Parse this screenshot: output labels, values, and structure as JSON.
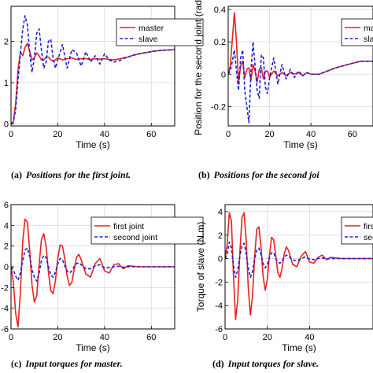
{
  "colors": {
    "master": "#e8201f",
    "slave": "#1f1fd6",
    "grid": "#d9d9d9",
    "frame": "#000000"
  },
  "chart_data": [
    {
      "type": "line",
      "caption_tag": "(a)",
      "caption": "Positions for the first joint.",
      "xlabel": "Time (s)",
      "ylabel": "",
      "xlim": [
        0,
        70
      ],
      "ylim": [
        -0.05,
        2.85
      ],
      "xticks": [
        0,
        20,
        40,
        60
      ],
      "yticks": [
        0,
        1,
        2
      ],
      "grid": true,
      "legend_position": "top-right",
      "series": [
        {
          "name": "master",
          "style": "solid",
          "color": "#e8201f",
          "x": [
            0,
            1,
            2,
            3,
            4,
            5,
            6,
            7,
            8,
            9,
            10,
            11,
            12,
            13,
            14,
            15,
            16,
            17,
            18,
            19,
            20,
            22,
            24,
            26,
            28,
            30,
            32,
            34,
            36,
            38,
            40,
            42,
            44,
            46,
            48,
            50,
            52,
            55,
            58,
            61,
            64,
            67,
            70
          ],
          "y": [
            0,
            0.05,
            0.5,
            1.3,
            1.75,
            1.65,
            1.85,
            1.95,
            1.75,
            1.55,
            1.6,
            1.72,
            1.65,
            1.55,
            1.55,
            1.62,
            1.62,
            1.55,
            1.52,
            1.55,
            1.6,
            1.55,
            1.58,
            1.6,
            1.56,
            1.58,
            1.58,
            1.56,
            1.58,
            1.57,
            1.58,
            1.56,
            1.55,
            1.57,
            1.6,
            1.62,
            1.66,
            1.7,
            1.73,
            1.76,
            1.78,
            1.79,
            1.8
          ]
        },
        {
          "name": "slave",
          "style": "dashed",
          "color": "#1f1fd6",
          "x": [
            0,
            1,
            2,
            3,
            4,
            5,
            6,
            7,
            8,
            9,
            10,
            11,
            12,
            13,
            14,
            15,
            16,
            17,
            18,
            19,
            20,
            22,
            24,
            26,
            28,
            30,
            32,
            34,
            36,
            38,
            40,
            42,
            44,
            46,
            48,
            50,
            52,
            55,
            58,
            61,
            64,
            67,
            70
          ],
          "y": [
            0,
            0.05,
            0.35,
            1.05,
            1.7,
            2.3,
            2.62,
            2.4,
            1.7,
            1.25,
            1.6,
            2.2,
            2.3,
            1.8,
            1.35,
            1.5,
            2.0,
            2.05,
            1.6,
            1.35,
            1.55,
            1.92,
            1.35,
            1.8,
            1.72,
            1.4,
            1.75,
            1.5,
            1.65,
            1.45,
            1.7,
            1.55,
            1.5,
            1.52,
            1.58,
            1.62,
            1.66,
            1.7,
            1.73,
            1.76,
            1.78,
            1.79,
            1.8
          ]
        }
      ]
    },
    {
      "type": "line",
      "caption_tag": "(b)",
      "caption": "Positions for the second joi",
      "xlabel": "Time (s)",
      "ylabel": "Position for the second joint (rad)",
      "xlim": [
        0,
        70
      ],
      "ylim": [
        -0.32,
        0.42
      ],
      "xticks": [
        0,
        20,
        40
      ],
      "xtick_partial": "60",
      "yticks": [
        -0.2,
        0,
        0.2,
        0.4
      ],
      "grid": true,
      "legend_position": "top-right",
      "series": [
        {
          "name": "master",
          "style": "solid",
          "color": "#e8201f",
          "x": [
            0,
            1,
            2,
            3,
            4,
            5,
            6,
            7,
            8,
            9,
            10,
            11,
            12,
            13,
            14,
            15,
            16,
            17,
            18,
            19,
            20,
            22,
            24,
            26,
            28,
            30,
            32,
            34,
            36,
            38,
            40,
            42,
            44,
            46,
            48,
            50,
            52,
            55,
            58,
            61,
            64,
            67,
            70
          ],
          "y": [
            0,
            0.05,
            0.22,
            0.38,
            0.2,
            -0.05,
            0.05,
            0.08,
            -0.02,
            0.03,
            0.04,
            -0.04,
            0.06,
            0.02,
            -0.05,
            0.03,
            0.04,
            -0.03,
            0.02,
            0.02,
            -0.02,
            0.02,
            -0.01,
            0.01,
            -0.01,
            0.01,
            0,
            0.01,
            -0.01,
            0.01,
            0,
            0,
            0,
            0.01,
            0.02,
            0.03,
            0.04,
            0.05,
            0.06,
            0.07,
            0.08,
            0.08,
            0.08
          ]
        },
        {
          "name": "slave",
          "style": "dashed",
          "color": "#1f1fd6",
          "x": [
            0,
            1,
            2,
            3,
            4,
            5,
            6,
            7,
            8,
            9,
            10,
            11,
            12,
            13,
            14,
            15,
            16,
            17,
            18,
            19,
            20,
            22,
            24,
            26,
            28,
            30,
            32,
            34,
            36,
            38,
            40,
            42,
            44,
            46,
            48,
            50,
            52,
            55,
            58,
            61,
            64,
            67,
            70
          ],
          "y": [
            0,
            0.02,
            0.08,
            0.15,
            0.02,
            -0.1,
            0.1,
            0.15,
            -0.1,
            -0.2,
            -0.3,
            0.02,
            0.2,
            0.05,
            -0.1,
            -0.15,
            0.12,
            0.1,
            -0.08,
            -0.12,
            -0.02,
            0.1,
            -0.06,
            0.06,
            -0.03,
            0.03,
            -0.02,
            0.02,
            -0.01,
            0.01,
            0,
            0,
            0,
            0.01,
            0.02,
            0.03,
            0.04,
            0.05,
            0.06,
            0.07,
            0.08,
            0.08,
            0.08
          ]
        }
      ]
    },
    {
      "type": "line",
      "caption_tag": "(c)",
      "caption": "Input torques for master.",
      "xlabel": "Time (s)",
      "ylabel": "",
      "xlim": [
        0,
        70
      ],
      "ylim": [
        -6,
        6
      ],
      "xticks": [
        0,
        20,
        40,
        60
      ],
      "yticks": [
        -6,
        -4,
        -2,
        0,
        2,
        4,
        6
      ],
      "grid": true,
      "legend_position": "top-right",
      "series": [
        {
          "name": "first joint",
          "style": "solid",
          "color": "#e8201f",
          "x": [
            0,
            1,
            2,
            3,
            4,
            5,
            6,
            7,
            8,
            9,
            10,
            11,
            12,
            13,
            14,
            15,
            16,
            17,
            18,
            19,
            20,
            21,
            22,
            23,
            24,
            25,
            26,
            27,
            28,
            29,
            30,
            32,
            34,
            36,
            38,
            40,
            42,
            44,
            46,
            48,
            50,
            55,
            60,
            65,
            70
          ],
          "y": [
            0,
            -1.5,
            -4.5,
            -5.8,
            -2.5,
            2.5,
            4.6,
            4.3,
            1.5,
            -1.8,
            -3.4,
            -2.8,
            0.2,
            2.6,
            3.2,
            2.0,
            -0.5,
            -2.3,
            -2.6,
            -1.3,
            0.8,
            2.1,
            2.0,
            0.8,
            -0.9,
            -1.8,
            -1.5,
            -0.3,
            0.9,
            1.2,
            0.7,
            -0.7,
            -1.0,
            0.3,
            0.8,
            -0.4,
            -0.6,
            0.2,
            0.3,
            -0.2,
            0.1,
            0,
            0,
            0,
            0
          ]
        },
        {
          "name": "second joint",
          "style": "dashed",
          "color": "#1f1fd6",
          "x": [
            0,
            1,
            2,
            3,
            4,
            5,
            6,
            7,
            8,
            9,
            10,
            11,
            12,
            13,
            14,
            15,
            16,
            17,
            18,
            19,
            20,
            21,
            22,
            23,
            24,
            25,
            26,
            27,
            28,
            29,
            30,
            32,
            34,
            36,
            38,
            40,
            42,
            44,
            46,
            48,
            50,
            55,
            60,
            65,
            70
          ],
          "y": [
            0,
            -0.3,
            -0.9,
            -1.3,
            -0.6,
            0.6,
            1.6,
            1.8,
            1.0,
            -0.3,
            -1.0,
            -1.4,
            -0.6,
            0.6,
            1.1,
            0.9,
            0,
            -0.8,
            -1.0,
            -0.5,
            0.3,
            0.8,
            0.7,
            0.1,
            -0.4,
            -0.6,
            -0.4,
            0,
            0.3,
            0.4,
            0.2,
            -0.2,
            -0.2,
            0.1,
            0.2,
            -0.1,
            -0.1,
            0,
            0.05,
            -0.05,
            0,
            0,
            0,
            0,
            0
          ]
        }
      ]
    },
    {
      "type": "line",
      "caption_tag": "(d)",
      "caption": "Input torques for slave.",
      "xlabel": "Time (s)",
      "ylabel": "Torque of slave (N.m)",
      "xlim": [
        0,
        70
      ],
      "ylim": [
        -6,
        4.6
      ],
      "xticks": [
        0,
        20,
        40
      ],
      "yticks": [
        -6,
        -4,
        -2,
        0,
        2,
        4
      ],
      "grid": true,
      "legend_position": "top-right",
      "series": [
        {
          "name": "first joint",
          "style": "solid",
          "color": "#e8201f",
          "x": [
            0,
            1,
            2,
            3,
            4,
            5,
            6,
            7,
            8,
            9,
            10,
            11,
            12,
            13,
            14,
            15,
            16,
            17,
            18,
            19,
            20,
            21,
            22,
            23,
            24,
            25,
            26,
            27,
            28,
            29,
            30,
            32,
            34,
            36,
            38,
            40,
            42,
            44,
            46,
            48,
            50,
            55,
            60,
            65,
            70
          ],
          "y": [
            0,
            1.2,
            3.9,
            3.2,
            -1.5,
            -5.2,
            -3.5,
            0.5,
            3.5,
            3.9,
            1.5,
            -2.5,
            -4.8,
            -3.2,
            0.2,
            2.5,
            2.7,
            1.0,
            -1.5,
            -2.7,
            -1.8,
            0.3,
            1.8,
            1.6,
            0.2,
            -1.2,
            -1.6,
            -0.8,
            0.4,
            1.0,
            0.7,
            -0.5,
            -0.7,
            0.2,
            0.6,
            -0.3,
            -0.4,
            0.1,
            0.3,
            -0.1,
            0.1,
            0,
            0,
            0,
            0
          ]
        },
        {
          "name": "second joint",
          "style": "dashed",
          "color": "#1f1fd6",
          "x": [
            0,
            1,
            2,
            3,
            4,
            5,
            6,
            7,
            8,
            9,
            10,
            11,
            12,
            13,
            14,
            15,
            16,
            17,
            18,
            19,
            20,
            21,
            22,
            23,
            24,
            25,
            26,
            27,
            28,
            29,
            30,
            32,
            34,
            36,
            38,
            40,
            42,
            44,
            46,
            48,
            50,
            55,
            60,
            65,
            70
          ],
          "y": [
            0,
            0.4,
            1.4,
            0.9,
            -0.6,
            -1.6,
            -1.0,
            0.2,
            1.1,
            1.3,
            0.4,
            -0.8,
            -1.6,
            -1.1,
            0,
            0.7,
            0.9,
            0.3,
            -0.4,
            -0.8,
            -0.5,
            0.1,
            0.5,
            0.5,
            0,
            -0.3,
            -0.4,
            -0.2,
            0.1,
            0.3,
            0.2,
            -0.1,
            -0.2,
            0,
            0.15,
            -0.05,
            -0.1,
            0,
            0.05,
            0,
            0,
            0,
            0,
            0,
            0
          ]
        }
      ]
    }
  ]
}
